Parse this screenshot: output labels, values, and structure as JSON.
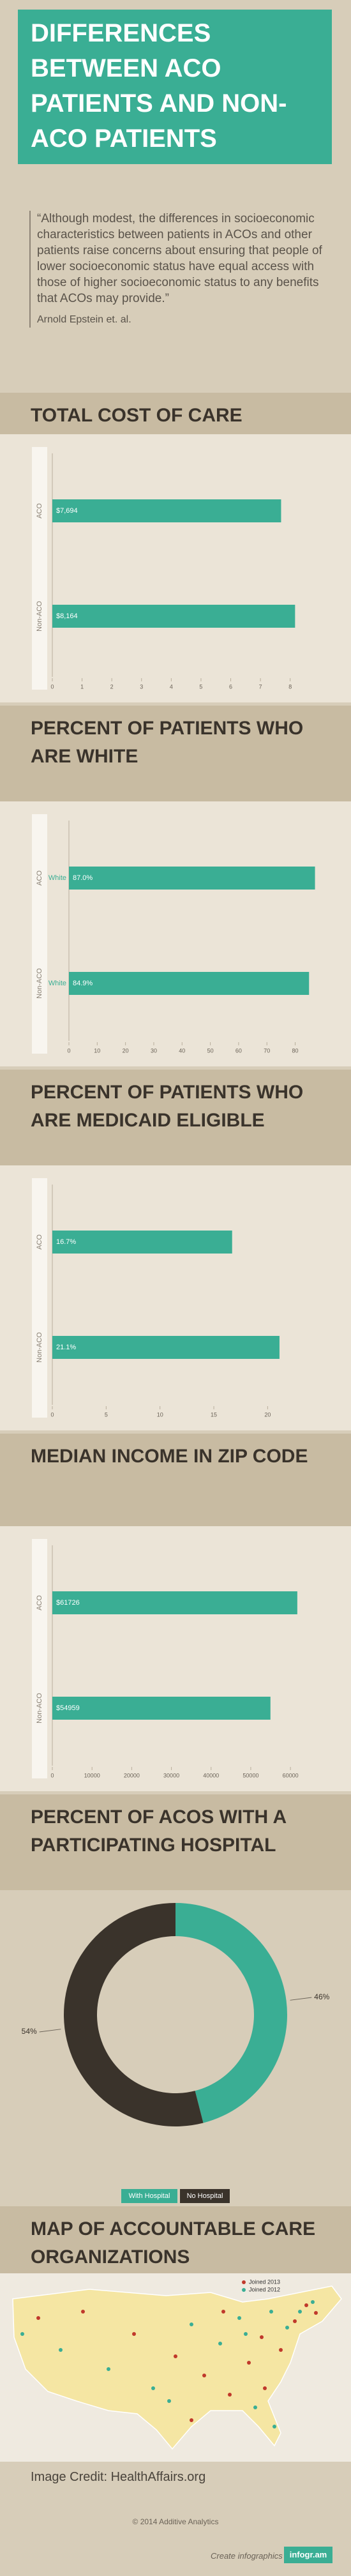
{
  "header": {
    "title": "DIFFERENCES BETWEEN ACO PATIENTS AND NON-ACO PATIENTS"
  },
  "quote": {
    "text": "“Although modest, the differences in socioeconomic characteristics between patients in ACOs and other patients raise concerns about ensuring that people of lower socioeconomic status have equal access with those of higher socioeconomic status to any benefits that ACOs may provide.”",
    "author": "Arnold Epstein et. al."
  },
  "chart_data": [
    {
      "type": "bar",
      "title": "TOTAL COST OF CARE",
      "categories": [
        "ACO",
        "Non-ACO"
      ],
      "series": [
        {
          "color": "#3aae94",
          "values": [
            7.694,
            8.164
          ],
          "value_labels": [
            "$7,694",
            "$8,164"
          ]
        }
      ],
      "xlim": [
        0,
        8.5
      ],
      "xticks": [
        0,
        1,
        2,
        3,
        4,
        5,
        6,
        7,
        8
      ]
    },
    {
      "type": "bar",
      "title": "PERCENT OF PATIENTS WHO ARE WHITE",
      "categories": [
        "ACO",
        "Non-ACO"
      ],
      "series": [
        {
          "name": "White",
          "color": "#3aae94",
          "values": [
            87.0,
            84.9
          ],
          "value_labels": [
            "87.0%",
            "84.9%"
          ]
        }
      ],
      "xlim": [
        0,
        88
      ],
      "xticks": [
        0,
        10,
        20,
        30,
        40,
        50,
        60,
        70,
        80
      ]
    },
    {
      "type": "bar",
      "title": "PERCENT OF PATIENTS WHO ARE MEDICAID ELIGIBLE",
      "categories": [
        "ACO",
        "Non-ACO"
      ],
      "series": [
        {
          "color": "#3aae94",
          "values": [
            16.7,
            21.1
          ],
          "value_labels": [
            "16.7%",
            "21.1%"
          ]
        }
      ],
      "xlim": [
        0,
        23
      ],
      "xticks": [
        0,
        5,
        10,
        15,
        20
      ]
    },
    {
      "type": "bar",
      "title": "MEDIAN INCOME IN ZIP CODE",
      "categories": [
        "ACO",
        "Non-ACO"
      ],
      "series": [
        {
          "color": "#3aae94",
          "values": [
            61726,
            54959
          ],
          "value_labels": [
            "$61726",
            "$54959"
          ]
        }
      ],
      "xlim": [
        0,
        64000
      ],
      "xticks": [
        0,
        10000,
        20000,
        30000,
        40000,
        50000,
        60000
      ]
    },
    {
      "type": "pie",
      "title": "PERCENT OF ACOS WITH A PARTICIPATING HOSPITAL",
      "categories": [
        "With Hospital",
        "No Hospital"
      ],
      "values": [
        46,
        54
      ],
      "value_labels": [
        "46%",
        "54%"
      ],
      "colors": [
        "#3aae94",
        "#3a332b"
      ]
    }
  ],
  "map": {
    "title": "MAP OF ACCOUNTABLE CARE ORGANIZATIONS",
    "legend": [
      "Joined 2013",
      "Joined 2012"
    ]
  },
  "footer": {
    "credit": "Image Credit: HealthAffairs.org",
    "copyright": "© 2014 Additive Analytics",
    "create": "Create infographics",
    "brand": "infogr.am"
  }
}
